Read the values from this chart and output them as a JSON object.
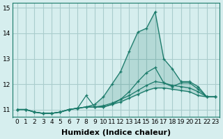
{
  "xlabel": "Humidex (Indice chaleur)",
  "background_color": "#d6eeee",
  "grid_color": "#aacccc",
  "line_color": "#1a7a6a",
  "x_values": [
    0,
    1,
    2,
    3,
    4,
    5,
    6,
    7,
    8,
    9,
    10,
    11,
    12,
    13,
    14,
    15,
    16,
    17,
    18,
    19,
    20,
    21,
    22,
    23
  ],
  "series": [
    [
      11.0,
      11.0,
      10.9,
      10.85,
      10.85,
      10.9,
      11.0,
      11.05,
      11.1,
      11.2,
      11.5,
      12.0,
      12.5,
      13.3,
      14.05,
      14.2,
      14.85,
      13.0,
      12.6,
      12.1,
      12.1,
      11.9,
      11.5,
      11.5
    ],
    [
      11.0,
      11.0,
      10.9,
      10.85,
      10.85,
      10.9,
      11.0,
      11.05,
      11.55,
      11.1,
      11.1,
      11.2,
      11.4,
      11.7,
      12.1,
      12.45,
      12.65,
      12.05,
      11.9,
      12.05,
      12.05,
      11.8,
      11.5,
      11.5
    ],
    [
      11.0,
      11.0,
      10.9,
      10.85,
      10.85,
      10.9,
      11.0,
      11.05,
      11.1,
      11.1,
      11.15,
      11.25,
      11.4,
      11.55,
      11.75,
      11.95,
      12.1,
      12.05,
      11.95,
      11.9,
      11.85,
      11.7,
      11.5,
      11.5
    ],
    [
      11.0,
      11.0,
      10.9,
      10.85,
      10.85,
      10.9,
      11.0,
      11.05,
      11.1,
      11.1,
      11.1,
      11.2,
      11.3,
      11.45,
      11.6,
      11.75,
      11.85,
      11.85,
      11.8,
      11.75,
      11.7,
      11.55,
      11.5,
      11.5
    ]
  ],
  "ylim": [
    10.7,
    15.2
  ],
  "yticks": [
    11,
    12,
    13,
    14,
    15
  ],
  "xticks": [
    0,
    1,
    2,
    3,
    4,
    5,
    6,
    7,
    8,
    9,
    10,
    11,
    12,
    13,
    14,
    15,
    16,
    17,
    18,
    19,
    20,
    21,
    22,
    23
  ],
  "tick_fontsize": 6.5,
  "xlabel_fontsize": 8
}
